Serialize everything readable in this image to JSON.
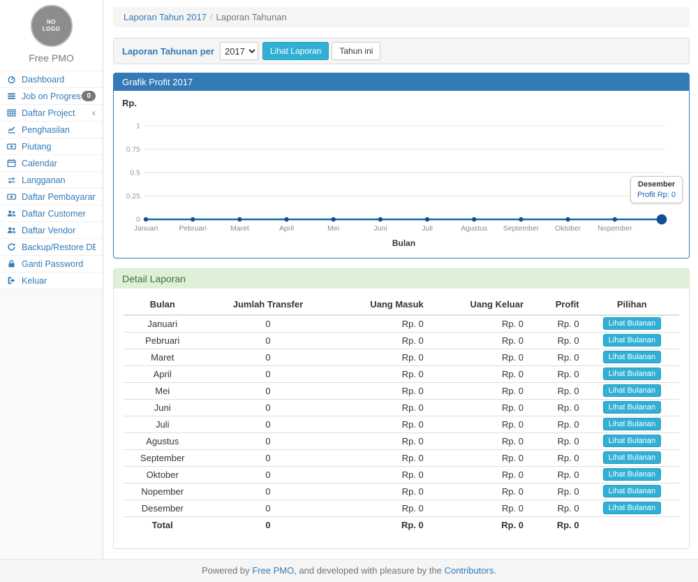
{
  "sidebar": {
    "logo_line1": "NO",
    "logo_line2": "LOGO",
    "brand": "Free PMO",
    "items": [
      {
        "label": "Dashboard",
        "icon": "dashboard-icon"
      },
      {
        "label": "Job on Progress",
        "icon": "tasks-icon",
        "badge": "0"
      },
      {
        "label": "Daftar Project",
        "icon": "table-icon",
        "chevron": "angle-left-icon"
      },
      {
        "label": "Penghasilan",
        "icon": "chart-line-icon"
      },
      {
        "label": "Piutang",
        "icon": "money-icon"
      },
      {
        "label": "Calendar",
        "icon": "calendar-icon"
      },
      {
        "label": "Langganan",
        "icon": "exchange-icon"
      },
      {
        "label": "Daftar Pembayaran",
        "icon": "money-icon"
      },
      {
        "label": "Daftar Customer",
        "icon": "users-icon"
      },
      {
        "label": "Daftar Vendor",
        "icon": "users-icon"
      },
      {
        "label": "Backup/Restore DB",
        "icon": "refresh-icon"
      },
      {
        "label": "Ganti Password",
        "icon": "lock-icon"
      },
      {
        "label": "Keluar",
        "icon": "sign-out-icon"
      }
    ]
  },
  "breadcrumb": {
    "link": "Laporan Tahun 2017",
    "separator": "/",
    "current": "Laporan Tahunan"
  },
  "filter_panel": {
    "label": "Laporan Tahunan per",
    "year_select": "2017",
    "submit_label": "Lihat Laporan",
    "current_year_label": "Tahun ini"
  },
  "chart_panel": {
    "title": "Grafik Profit 2017"
  },
  "chart_data": {
    "type": "line",
    "title": "Grafik Profit 2017",
    "ylabel": "Rp.",
    "xlabel": "Bulan",
    "x": [
      "Januari",
      "Pebruari",
      "Maret",
      "April",
      "Mei",
      "Juni",
      "Juli",
      "Agustus",
      "September",
      "Oktober",
      "Nopember",
      "Desember"
    ],
    "series": [
      {
        "name": "Profit",
        "values": [
          0,
          0,
          0,
          0,
          0,
          0,
          0,
          0,
          0,
          0,
          0,
          0
        ]
      }
    ],
    "yticks": [
      0,
      0.25,
      0.5,
      0.75,
      1
    ],
    "ylim": [
      0,
      1
    ],
    "grid": true,
    "legend": false,
    "last_x_label_hidden": true,
    "highlighted_point": "Desember",
    "tooltip": {
      "title": "Desember",
      "value": "Profit Rp: 0"
    },
    "line_color": "#1b64ad",
    "point_color": "#134e94"
  },
  "detail_panel": {
    "title": "Detail Laporan",
    "table": {
      "headers": [
        "Bulan",
        "Jumlah Transfer",
        "Uang Masuk",
        "Uang Keluar",
        "Profit",
        "Pilihan"
      ],
      "action_label": "Lihat Bulanan",
      "rows": [
        [
          "Januari",
          "0",
          "Rp. 0",
          "Rp. 0",
          "Rp. 0"
        ],
        [
          "Pebruari",
          "0",
          "Rp. 0",
          "Rp. 0",
          "Rp. 0"
        ],
        [
          "Maret",
          "0",
          "Rp. 0",
          "Rp. 0",
          "Rp. 0"
        ],
        [
          "April",
          "0",
          "Rp. 0",
          "Rp. 0",
          "Rp. 0"
        ],
        [
          "Mei",
          "0",
          "Rp. 0",
          "Rp. 0",
          "Rp. 0"
        ],
        [
          "Juni",
          "0",
          "Rp. 0",
          "Rp. 0",
          "Rp. 0"
        ],
        [
          "Juli",
          "0",
          "Rp. 0",
          "Rp. 0",
          "Rp. 0"
        ],
        [
          "Agustus",
          "0",
          "Rp. 0",
          "Rp. 0",
          "Rp. 0"
        ],
        [
          "September",
          "0",
          "Rp. 0",
          "Rp. 0",
          "Rp. 0"
        ],
        [
          "Oktober",
          "0",
          "Rp. 0",
          "Rp. 0",
          "Rp. 0"
        ],
        [
          "Nopember",
          "0",
          "Rp. 0",
          "Rp. 0",
          "Rp. 0"
        ],
        [
          "Desember",
          "0",
          "Rp. 0",
          "Rp. 0",
          "Rp. 0"
        ]
      ],
      "total_row": [
        "Total",
        "0",
        "Rp. 0",
        "Rp. 0",
        "Rp. 0"
      ]
    }
  },
  "footer": {
    "prefix": "Powered by ",
    "link1": "Free PMO",
    "middle": ", and developed with pleasure by the ",
    "link2": "Contributors",
    "suffix": "."
  },
  "colors": {
    "accent_blue": "#337ab7",
    "info_button": "#31b0d5",
    "success_header_bg": "#dff0d8",
    "success_header_text": "#3c763d",
    "chart_line": "#1b64ad"
  }
}
